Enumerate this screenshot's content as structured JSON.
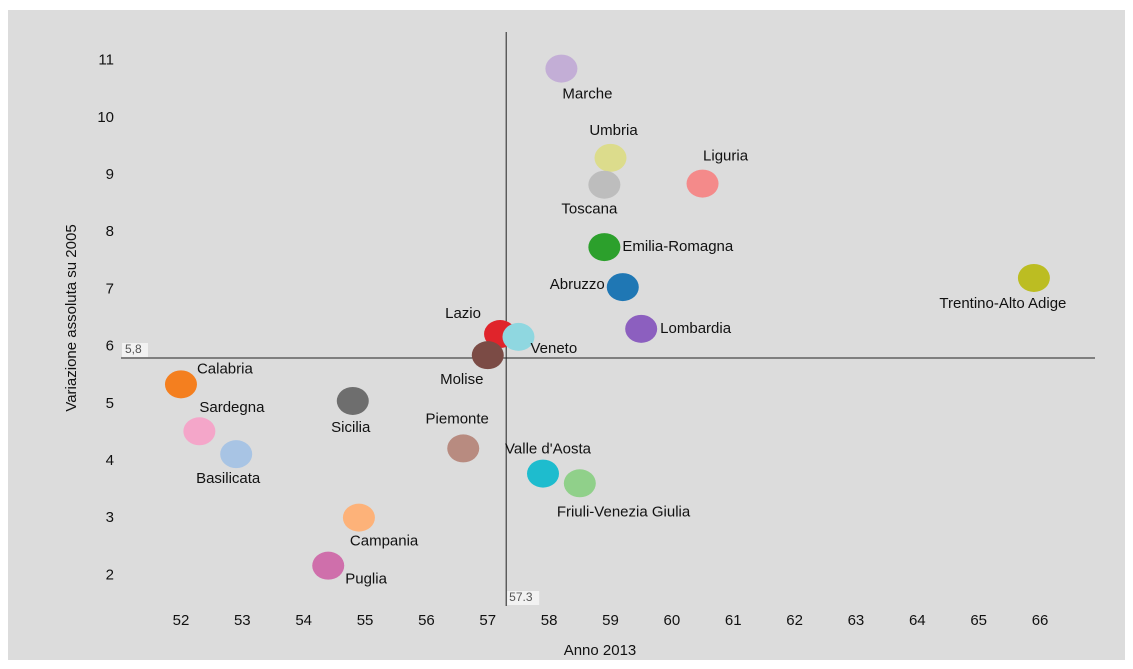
{
  "chart_data": {
    "type": "scatter",
    "x_label": "Anno 2013",
    "y_label": "Variazione assoluta su 2005",
    "xlim": [
      51,
      67
    ],
    "ylim": [
      1.5,
      11.5
    ],
    "xticks": [
      52,
      53,
      54,
      55,
      56,
      57,
      58,
      59,
      60,
      61,
      62,
      63,
      64,
      65,
      66
    ],
    "yticks": [
      2,
      3,
      4,
      5,
      6,
      7,
      8,
      9,
      10,
      11
    ],
    "grid": false,
    "reference_lines": {
      "x": {
        "value": 57.3,
        "label": "57.3"
      },
      "y": {
        "value": 5.8,
        "label": "5,8"
      }
    },
    "points": [
      {
        "name": "Marche",
        "x": 58.2,
        "y": 10.86,
        "color": "#c3aed6"
      },
      {
        "name": "Umbria",
        "x": 59.0,
        "y": 9.3,
        "color": "#dcdc8c"
      },
      {
        "name": "Liguria",
        "x": 60.5,
        "y": 8.85,
        "color": "#f48a8a"
      },
      {
        "name": "Toscana",
        "x": 58.9,
        "y": 8.83,
        "color": "#bdbdbd"
      },
      {
        "name": "Emilia-Romagna",
        "x": 58.9,
        "y": 7.74,
        "color": "#2ca02c"
      },
      {
        "name": "Abruzzo",
        "x": 59.2,
        "y": 7.04,
        "color": "#1f77b4"
      },
      {
        "name": "Trentino-Alto Adige",
        "x": 65.9,
        "y": 7.2,
        "color": "#bcbd22"
      },
      {
        "name": "Lombardia",
        "x": 59.5,
        "y": 6.31,
        "color": "#8c5fbf"
      },
      {
        "name": "Lazio",
        "x": 57.2,
        "y": 6.22,
        "color": "#e0242b"
      },
      {
        "name": "Veneto",
        "x": 57.5,
        "y": 6.17,
        "color": "#8fd7e0"
      },
      {
        "name": "Molise",
        "x": 57.0,
        "y": 5.85,
        "color": "#7b4b45"
      },
      {
        "name": "Calabria",
        "x": 52.0,
        "y": 5.34,
        "color": "#f47f1f"
      },
      {
        "name": "Sicilia",
        "x": 54.8,
        "y": 5.05,
        "color": "#6e6e6e"
      },
      {
        "name": "Sardegna",
        "x": 52.3,
        "y": 4.52,
        "color": "#f4a6c9"
      },
      {
        "name": "Basilicata",
        "x": 52.9,
        "y": 4.12,
        "color": "#a8c4e4"
      },
      {
        "name": "Piemonte",
        "x": 56.6,
        "y": 4.22,
        "color": "#b88b80"
      },
      {
        "name": "Valle d'Aosta",
        "x": 57.9,
        "y": 3.78,
        "color": "#1ebcce"
      },
      {
        "name": "Friuli-Venezia Giulia",
        "x": 58.5,
        "y": 3.61,
        "color": "#90d08a"
      },
      {
        "name": "Campania",
        "x": 54.9,
        "y": 3.01,
        "color": "#fdb279"
      },
      {
        "name": "Puglia",
        "x": 54.4,
        "y": 2.17,
        "color": "#cf6fab"
      }
    ]
  }
}
